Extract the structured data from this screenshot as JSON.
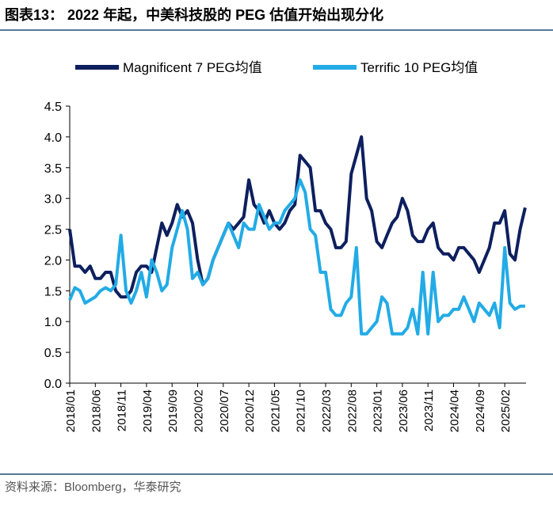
{
  "chart_data": {
    "type": "line",
    "title": "图表13： 2022 年起，中美科技股的 PEG 估值开始出现分化",
    "source": "资料来源：Bloomberg，华泰研究",
    "x": [
      "2018/01",
      "2018/02",
      "2018/03",
      "2018/04",
      "2018/05",
      "2018/06",
      "2018/07",
      "2018/08",
      "2018/09",
      "2018/10",
      "2018/11",
      "2018/12",
      "2019/01",
      "2019/02",
      "2019/03",
      "2019/04",
      "2019/05",
      "2019/06",
      "2019/07",
      "2019/08",
      "2019/09",
      "2019/10",
      "2019/11",
      "2019/12",
      "2020/01",
      "2020/02",
      "2020/03",
      "2020/04",
      "2020/05",
      "2020/06",
      "2020/07",
      "2020/08",
      "2020/09",
      "2020/10",
      "2020/11",
      "2020/12",
      "2021/01",
      "2021/02",
      "2021/03",
      "2021/04",
      "2021/05",
      "2021/06",
      "2021/07",
      "2021/08",
      "2021/09",
      "2021/10",
      "2021/11",
      "2021/12",
      "2022/01",
      "2022/02",
      "2022/03",
      "2022/04",
      "2022/05",
      "2022/06",
      "2022/07",
      "2022/08",
      "2022/09",
      "2022/10",
      "2022/11",
      "2022/12",
      "2023/01",
      "2023/02",
      "2023/03",
      "2023/04",
      "2023/05",
      "2023/06",
      "2023/07",
      "2023/08",
      "2023/09",
      "2023/10",
      "2023/11",
      "2023/12",
      "2024/01",
      "2024/02",
      "2024/03",
      "2024/04",
      "2024/05",
      "2024/06",
      "2024/07",
      "2024/08",
      "2024/09",
      "2024/10",
      "2024/11",
      "2024/12",
      "2025/01",
      "2025/02",
      "2025/03",
      "2025/04",
      "2025/05",
      "2025/06"
    ],
    "xticks": [
      "2018/01",
      "2018/06",
      "2018/11",
      "2019/04",
      "2019/09",
      "2020/02",
      "2020/07",
      "2020/12",
      "2021/05",
      "2021/10",
      "2022/03",
      "2022/08",
      "2023/01",
      "2023/06",
      "2023/11",
      "2024/04",
      "2024/09",
      "2025/02"
    ],
    "series": [
      {
        "name": "Magnificent 7 PEG均值",
        "color": "#0d1f5e",
        "values": [
          2.5,
          1.9,
          1.9,
          1.8,
          1.9,
          1.7,
          1.7,
          1.8,
          1.8,
          1.5,
          1.4,
          1.4,
          1.5,
          1.8,
          1.9,
          1.9,
          1.8,
          2.2,
          2.6,
          2.4,
          2.6,
          2.9,
          2.7,
          2.8,
          2.6,
          2.0,
          1.6,
          1.7,
          2.0,
          2.2,
          2.4,
          2.6,
          2.5,
          2.6,
          2.7,
          3.3,
          2.9,
          2.8,
          2.6,
          2.8,
          2.6,
          2.5,
          2.6,
          2.8,
          2.9,
          3.7,
          3.6,
          3.5,
          2.8,
          2.8,
          2.6,
          2.5,
          2.2,
          2.2,
          2.3,
          3.4,
          3.7,
          4.0,
          3.0,
          2.8,
          2.3,
          2.2,
          2.4,
          2.6,
          2.7,
          3.0,
          2.8,
          2.4,
          2.3,
          2.3,
          2.5,
          2.6,
          2.2,
          2.1,
          2.1,
          2.0,
          2.2,
          2.2,
          2.1,
          2.0,
          1.8,
          2.0,
          2.2,
          2.6,
          2.6,
          2.8,
          2.1,
          2.0,
          2.5,
          2.85
        ]
      },
      {
        "name": "Terrific 10 PEG均值",
        "color": "#22abe6",
        "values": [
          1.35,
          1.55,
          1.5,
          1.3,
          1.35,
          1.4,
          1.5,
          1.55,
          1.5,
          1.6,
          2.4,
          1.5,
          1.3,
          1.5,
          1.8,
          1.4,
          2.0,
          1.8,
          1.5,
          1.6,
          2.2,
          2.5,
          2.8,
          2.5,
          1.7,
          1.8,
          1.6,
          1.7,
          2.0,
          2.2,
          2.4,
          2.6,
          2.4,
          2.2,
          2.6,
          2.5,
          2.5,
          2.9,
          2.7,
          2.5,
          2.6,
          2.6,
          2.8,
          2.9,
          3.0,
          3.3,
          3.1,
          2.5,
          2.4,
          1.8,
          1.8,
          1.2,
          1.1,
          1.1,
          1.3,
          1.4,
          2.2,
          0.8,
          0.8,
          0.9,
          1.0,
          1.4,
          1.3,
          0.8,
          0.8,
          0.8,
          0.9,
          1.2,
          0.8,
          1.8,
          0.8,
          1.8,
          1.0,
          1.1,
          1.1,
          1.2,
          1.2,
          1.4,
          1.2,
          1.0,
          1.3,
          1.2,
          1.1,
          1.3,
          0.9,
          2.2,
          1.3,
          1.2,
          1.25,
          1.25
        ]
      }
    ],
    "ylim": [
      0,
      4.5
    ],
    "yticks": [
      {
        "value": 0,
        "label": "0.0"
      },
      0.5,
      {
        "value": 1,
        "label": "1.0"
      },
      1.5,
      {
        "value": 2,
        "label": "2.0"
      },
      2.5,
      {
        "value": 3,
        "label": "3.0"
      },
      3.5,
      {
        "value": 4,
        "label": "4.0"
      },
      4.5
    ],
    "grid": false
  }
}
